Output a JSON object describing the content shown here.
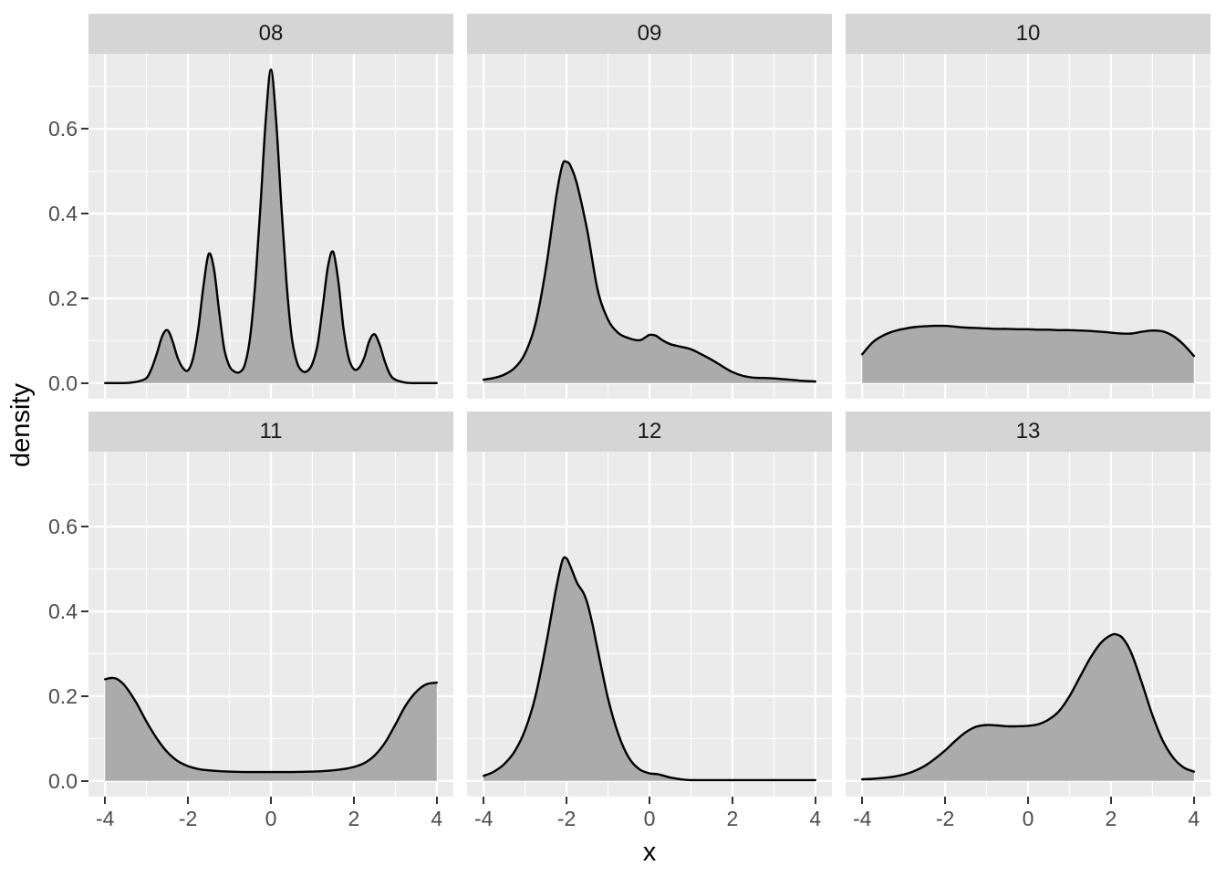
{
  "chart_data": {
    "type": "area",
    "title": "",
    "xlabel": "x",
    "ylabel": "density",
    "xlim": [
      -4.4,
      4.4
    ],
    "ylim": [
      -0.037,
      0.777
    ],
    "grid": true,
    "legend_position": "none",
    "x_ticks": {
      "values": [
        -4,
        -2,
        0,
        2,
        4
      ],
      "labels": [
        "-4",
        "-2",
        "0",
        "2",
        "4"
      ]
    },
    "y_ticks": {
      "values": [
        0.0,
        0.2,
        0.4,
        0.6
      ],
      "labels": [
        "0.0",
        "0.2",
        "0.4",
        "0.6"
      ]
    },
    "x_minor": [
      -3,
      -1,
      1,
      3
    ],
    "y_minor": [
      0.1,
      0.3,
      0.5,
      0.7
    ],
    "facets": [
      {
        "label": "08",
        "points": [
          [
            -4,
            0
          ],
          [
            -3.6,
            0
          ],
          [
            -3.4,
            0.001
          ],
          [
            -3.2,
            0.004
          ],
          [
            -3,
            0.012
          ],
          [
            -2.875,
            0.035
          ],
          [
            -2.75,
            0.07
          ],
          [
            -2.625,
            0.11
          ],
          [
            -2.5,
            0.125
          ],
          [
            -2.375,
            0.1
          ],
          [
            -2.25,
            0.06
          ],
          [
            -2.125,
            0.036
          ],
          [
            -2,
            0.03
          ],
          [
            -1.875,
            0.06
          ],
          [
            -1.75,
            0.13
          ],
          [
            -1.625,
            0.23
          ],
          [
            -1.5,
            0.305
          ],
          [
            -1.375,
            0.27
          ],
          [
            -1.25,
            0.17
          ],
          [
            -1.125,
            0.08
          ],
          [
            -1,
            0.04
          ],
          [
            -0.875,
            0.027
          ],
          [
            -0.75,
            0.026
          ],
          [
            -0.625,
            0.045
          ],
          [
            -0.5,
            0.11
          ],
          [
            -0.375,
            0.24
          ],
          [
            -0.25,
            0.42
          ],
          [
            -0.125,
            0.62
          ],
          [
            0,
            0.74
          ],
          [
            0.125,
            0.62
          ],
          [
            0.25,
            0.42
          ],
          [
            0.375,
            0.24
          ],
          [
            0.5,
            0.11
          ],
          [
            0.625,
            0.05
          ],
          [
            0.75,
            0.029
          ],
          [
            0.875,
            0.028
          ],
          [
            1,
            0.046
          ],
          [
            1.125,
            0.09
          ],
          [
            1.25,
            0.18
          ],
          [
            1.375,
            0.275
          ],
          [
            1.5,
            0.31
          ],
          [
            1.625,
            0.24
          ],
          [
            1.75,
            0.13
          ],
          [
            1.875,
            0.06
          ],
          [
            2,
            0.033
          ],
          [
            2.125,
            0.036
          ],
          [
            2.25,
            0.06
          ],
          [
            2.375,
            0.1
          ],
          [
            2.5,
            0.115
          ],
          [
            2.625,
            0.09
          ],
          [
            2.75,
            0.05
          ],
          [
            2.875,
            0.02
          ],
          [
            3,
            0.008
          ],
          [
            3.2,
            0.002
          ],
          [
            3.4,
            0
          ],
          [
            3.6,
            0
          ],
          [
            4,
            0
          ]
        ]
      },
      {
        "label": "09",
        "points": [
          [
            -4,
            0.008
          ],
          [
            -3.75,
            0.012
          ],
          [
            -3.5,
            0.02
          ],
          [
            -3.25,
            0.036
          ],
          [
            -3,
            0.07
          ],
          [
            -2.75,
            0.14
          ],
          [
            -2.5,
            0.27
          ],
          [
            -2.25,
            0.44
          ],
          [
            -2.1,
            0.515
          ],
          [
            -2,
            0.522
          ],
          [
            -1.9,
            0.512
          ],
          [
            -1.75,
            0.47
          ],
          [
            -1.5,
            0.36
          ],
          [
            -1.25,
            0.22
          ],
          [
            -1,
            0.15
          ],
          [
            -0.75,
            0.118
          ],
          [
            -0.5,
            0.106
          ],
          [
            -0.25,
            0.101
          ],
          [
            -0.1,
            0.108
          ],
          [
            0,
            0.114
          ],
          [
            0.15,
            0.112
          ],
          [
            0.3,
            0.102
          ],
          [
            0.5,
            0.092
          ],
          [
            0.75,
            0.086
          ],
          [
            1,
            0.08
          ],
          [
            1.25,
            0.068
          ],
          [
            1.5,
            0.055
          ],
          [
            1.75,
            0.04
          ],
          [
            2,
            0.026
          ],
          [
            2.25,
            0.017
          ],
          [
            2.5,
            0.013
          ],
          [
            2.75,
            0.012
          ],
          [
            3,
            0.011
          ],
          [
            3.25,
            0.009
          ],
          [
            3.5,
            0.007
          ],
          [
            3.75,
            0.005
          ],
          [
            4,
            0.004
          ]
        ]
      },
      {
        "label": "10",
        "points": [
          [
            -4,
            0.068
          ],
          [
            -3.75,
            0.096
          ],
          [
            -3.5,
            0.112
          ],
          [
            -3.25,
            0.122
          ],
          [
            -3,
            0.128
          ],
          [
            -2.75,
            0.132
          ],
          [
            -2.5,
            0.134
          ],
          [
            -2.25,
            0.135
          ],
          [
            -2,
            0.135
          ],
          [
            -1.75,
            0.133
          ],
          [
            -1.5,
            0.131
          ],
          [
            -1.25,
            0.13
          ],
          [
            -1,
            0.129
          ],
          [
            -0.75,
            0.128
          ],
          [
            -0.5,
            0.128
          ],
          [
            -0.25,
            0.127
          ],
          [
            0,
            0.127
          ],
          [
            0.25,
            0.126
          ],
          [
            0.5,
            0.126
          ],
          [
            0.75,
            0.125
          ],
          [
            1,
            0.125
          ],
          [
            1.25,
            0.124
          ],
          [
            1.5,
            0.123
          ],
          [
            1.75,
            0.121
          ],
          [
            2,
            0.119
          ],
          [
            2.25,
            0.117
          ],
          [
            2.5,
            0.117
          ],
          [
            2.75,
            0.121
          ],
          [
            3,
            0.124
          ],
          [
            3.25,
            0.122
          ],
          [
            3.5,
            0.111
          ],
          [
            3.75,
            0.091
          ],
          [
            4,
            0.064
          ]
        ]
      },
      {
        "label": "11",
        "points": [
          [
            -4,
            0.24
          ],
          [
            -3.85,
            0.243
          ],
          [
            -3.7,
            0.24
          ],
          [
            -3.5,
            0.222
          ],
          [
            -3.25,
            0.185
          ],
          [
            -3,
            0.14
          ],
          [
            -2.75,
            0.1
          ],
          [
            -2.5,
            0.068
          ],
          [
            -2.25,
            0.047
          ],
          [
            -2,
            0.035
          ],
          [
            -1.75,
            0.028
          ],
          [
            -1.5,
            0.025
          ],
          [
            -1.25,
            0.023
          ],
          [
            -1,
            0.022
          ],
          [
            -0.5,
            0.021
          ],
          [
            0,
            0.021
          ],
          [
            0.5,
            0.021
          ],
          [
            1,
            0.022
          ],
          [
            1.25,
            0.023
          ],
          [
            1.5,
            0.025
          ],
          [
            1.75,
            0.028
          ],
          [
            2,
            0.033
          ],
          [
            2.25,
            0.042
          ],
          [
            2.5,
            0.06
          ],
          [
            2.75,
            0.09
          ],
          [
            3,
            0.133
          ],
          [
            3.25,
            0.178
          ],
          [
            3.5,
            0.21
          ],
          [
            3.75,
            0.228
          ],
          [
            4,
            0.232
          ]
        ]
      },
      {
        "label": "12",
        "points": [
          [
            -4,
            0.012
          ],
          [
            -3.75,
            0.022
          ],
          [
            -3.5,
            0.04
          ],
          [
            -3.25,
            0.07
          ],
          [
            -3,
            0.12
          ],
          [
            -2.75,
            0.2
          ],
          [
            -2.5,
            0.32
          ],
          [
            -2.25,
            0.455
          ],
          [
            -2.1,
            0.52
          ],
          [
            -2,
            0.525
          ],
          [
            -1.9,
            0.505
          ],
          [
            -1.75,
            0.468
          ],
          [
            -1.6,
            0.445
          ],
          [
            -1.5,
            0.42
          ],
          [
            -1.375,
            0.37
          ],
          [
            -1.25,
            0.31
          ],
          [
            -1,
            0.195
          ],
          [
            -0.75,
            0.11
          ],
          [
            -0.5,
            0.055
          ],
          [
            -0.25,
            0.028
          ],
          [
            0,
            0.018
          ],
          [
            0.2,
            0.016
          ],
          [
            0.35,
            0.012
          ],
          [
            0.5,
            0.008
          ],
          [
            0.75,
            0.004
          ],
          [
            1,
            0.002
          ],
          [
            1.5,
            0.002
          ],
          [
            2,
            0.002
          ],
          [
            2.5,
            0.002
          ],
          [
            3,
            0.002
          ],
          [
            3.5,
            0.002
          ],
          [
            4,
            0.002
          ]
        ]
      },
      {
        "label": "13",
        "points": [
          [
            -4,
            0.004
          ],
          [
            -3.75,
            0.005
          ],
          [
            -3.5,
            0.007
          ],
          [
            -3.25,
            0.01
          ],
          [
            -3,
            0.015
          ],
          [
            -2.75,
            0.023
          ],
          [
            -2.5,
            0.035
          ],
          [
            -2.25,
            0.052
          ],
          [
            -2,
            0.072
          ],
          [
            -1.75,
            0.095
          ],
          [
            -1.5,
            0.115
          ],
          [
            -1.25,
            0.128
          ],
          [
            -1,
            0.132
          ],
          [
            -0.75,
            0.131
          ],
          [
            -0.5,
            0.129
          ],
          [
            -0.25,
            0.129
          ],
          [
            0,
            0.13
          ],
          [
            0.25,
            0.134
          ],
          [
            0.5,
            0.145
          ],
          [
            0.75,
            0.165
          ],
          [
            1,
            0.2
          ],
          [
            1.25,
            0.245
          ],
          [
            1.5,
            0.29
          ],
          [
            1.75,
            0.325
          ],
          [
            2,
            0.344
          ],
          [
            2.15,
            0.345
          ],
          [
            2.3,
            0.335
          ],
          [
            2.5,
            0.3
          ],
          [
            2.75,
            0.23
          ],
          [
            3,
            0.155
          ],
          [
            3.25,
            0.095
          ],
          [
            3.5,
            0.055
          ],
          [
            3.75,
            0.032
          ],
          [
            4,
            0.022
          ]
        ]
      }
    ]
  },
  "style": {
    "background": "#FFFFFF",
    "panel_bg": "#EBEBEB",
    "strip_bg": "#D5D5D5",
    "grid_color": "#FFFFFF",
    "density_fill": "#ABABAB",
    "density_stroke": "#000000",
    "tick_text": "#4D4D4D",
    "strip_text": "#1A1A1A",
    "axis_title_text": "#000000",
    "tick_mark": "#333333"
  }
}
